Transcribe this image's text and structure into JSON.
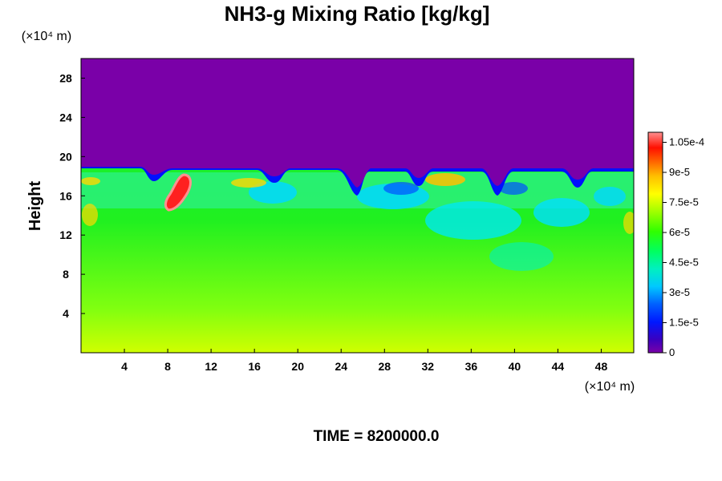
{
  "chart_data": {
    "type": "heatmap",
    "title": "NH3-g Mixing Ratio [kg/kg]",
    "ylabel": "Height",
    "x_unit": "(×10⁴ m)",
    "y_unit": "(×10⁴ m)",
    "x_ticks": [
      "4",
      "8",
      "12",
      "16",
      "20",
      "24",
      "28",
      "32",
      "36",
      "40",
      "44",
      "48"
    ],
    "y_ticks": [
      "4",
      "8",
      "12",
      "16",
      "20",
      "24",
      "28"
    ],
    "xlim": [
      0,
      51
    ],
    "ylim": [
      0,
      30
    ],
    "colorbar": {
      "range": [
        0,
        0.00011
      ],
      "labels": [
        "0",
        "1.5e-5",
        "3e-5",
        "4.5e-5",
        "6e-5",
        "7.5e-5",
        "9e-5",
        "1.05e-4"
      ],
      "colors": [
        "#7a00a8",
        "#3a00c0",
        "#0018ff",
        "#0080ff",
        "#00e0ff",
        "#00ff80",
        "#30ff00",
        "#a0ff00",
        "#ffff00",
        "#ffc000",
        "#ff6000",
        "#ff1000",
        "#ff8080"
      ]
    },
    "field_summary": {
      "upper_uniform_value": 0,
      "transition_height": 18.5,
      "near_surface_value": 7e-05,
      "mid_level_value": 5e-05,
      "plume_peak_value": 0.0001
    },
    "time_label": "TIME = 8200000.0"
  }
}
